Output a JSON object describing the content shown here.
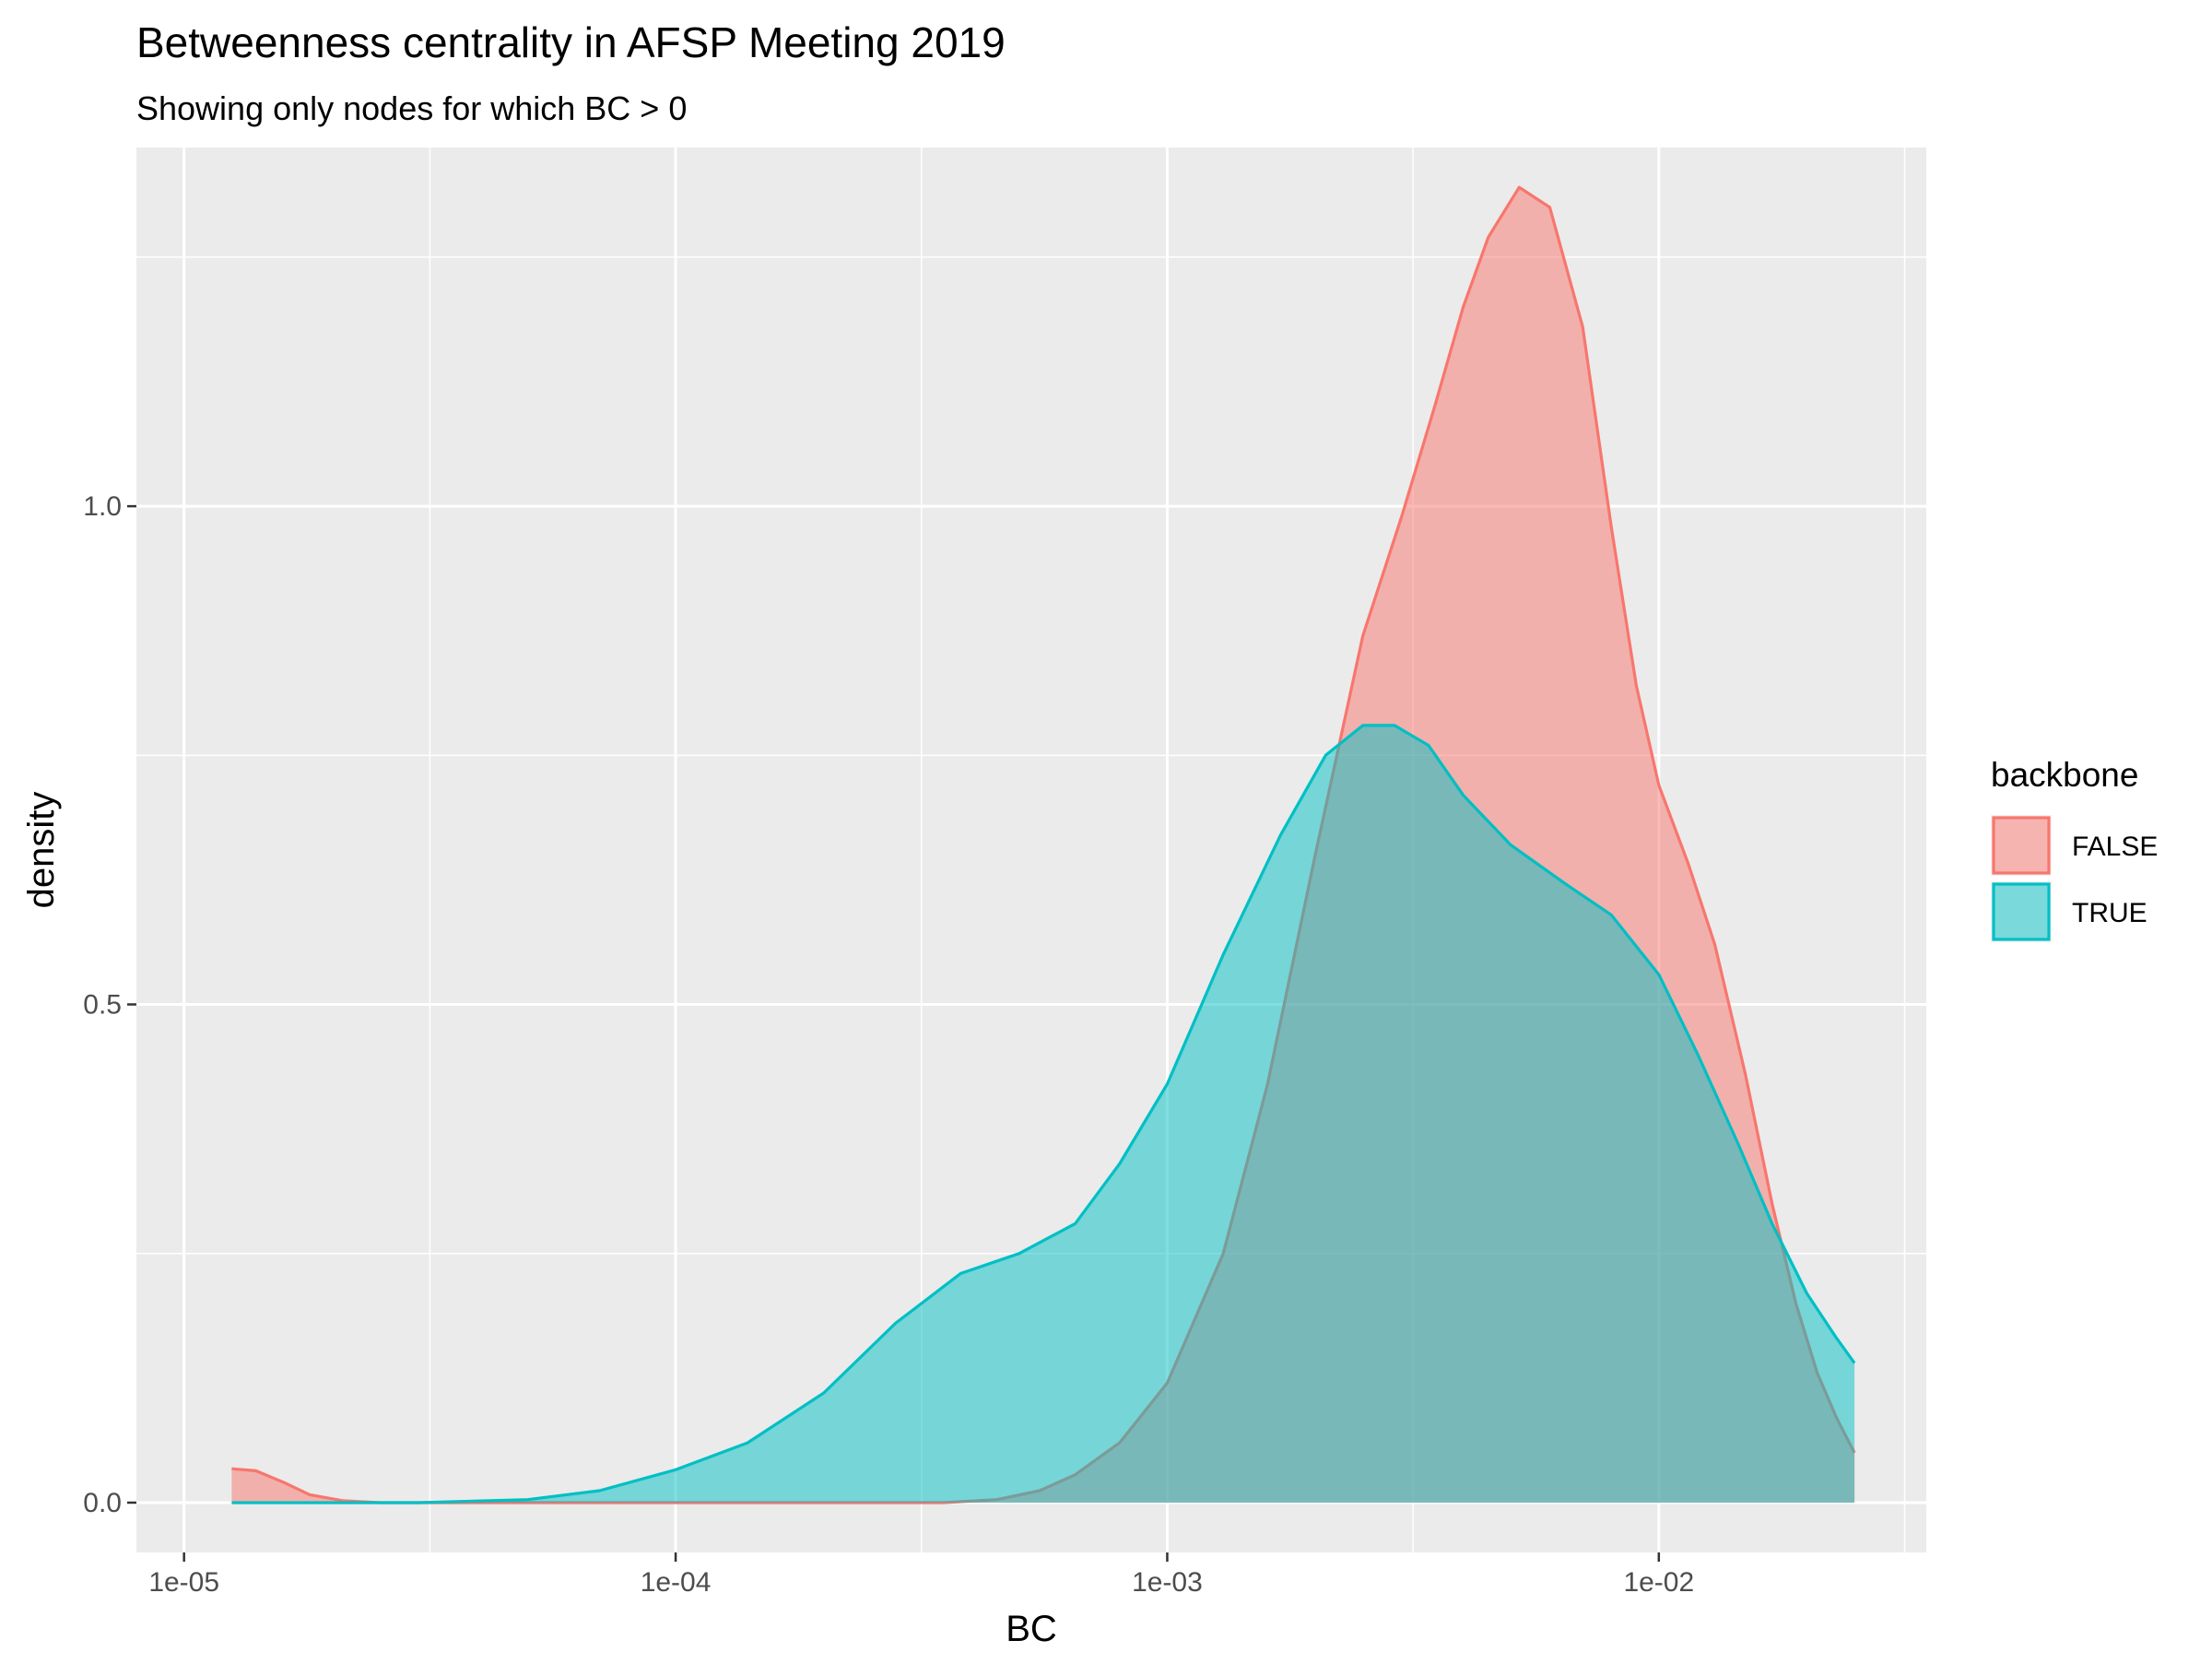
{
  "chart_data": {
    "type": "area",
    "title": "Betweenness centrality in AFSP Meeting 2019",
    "subtitle": "Showing only nodes for which BC > 0",
    "xlabel": "BC",
    "ylabel": "density",
    "x_scale": "log10",
    "xlim": [
      8e-06,
      0.035
    ],
    "ylim": [
      -0.05,
      1.36
    ],
    "x_ticks": [
      {
        "value": 1e-05,
        "label": "1e-05"
      },
      {
        "value": 0.0001,
        "label": "1e-04"
      },
      {
        "value": 0.001,
        "label": "1e-03"
      },
      {
        "value": 0.01,
        "label": "1e-02"
      }
    ],
    "y_ticks": [
      {
        "value": 0.0,
        "label": "0.0"
      },
      {
        "value": 0.5,
        "label": "0.5"
      },
      {
        "value": 1.0,
        "label": "1.0"
      }
    ],
    "grid": true,
    "legend": {
      "title": "backbone",
      "position": "right"
    },
    "series": [
      {
        "name": "FALSE",
        "color": "#F8766D",
        "points": [
          [
            1.25e-05,
            0.034
          ],
          [
            1.4e-05,
            0.032
          ],
          [
            1.6e-05,
            0.02
          ],
          [
            1.8e-05,
            0.008
          ],
          [
            2.1e-05,
            0.002
          ],
          [
            2.5e-05,
            0.0
          ],
          [
            5e-05,
            0.0
          ],
          [
            0.0001,
            0.0
          ],
          [
            0.0002,
            0.0
          ],
          [
            0.00035,
            0.0
          ],
          [
            0.00045,
            0.003
          ],
          [
            0.00055,
            0.012
          ],
          [
            0.00065,
            0.028
          ],
          [
            0.0008,
            0.06
          ],
          [
            0.001,
            0.12
          ],
          [
            0.0013,
            0.25
          ],
          [
            0.0016,
            0.42
          ],
          [
            0.002,
            0.65
          ],
          [
            0.0025,
            0.87
          ],
          [
            0.003,
            0.99
          ],
          [
            0.0035,
            1.1
          ],
          [
            0.004,
            1.2
          ],
          [
            0.0045,
            1.27
          ],
          [
            0.0052,
            1.32
          ],
          [
            0.006,
            1.3
          ],
          [
            0.007,
            1.18
          ],
          [
            0.008,
            0.98
          ],
          [
            0.009,
            0.82
          ],
          [
            0.01,
            0.72
          ],
          [
            0.0115,
            0.64
          ],
          [
            0.013,
            0.56
          ],
          [
            0.015,
            0.43
          ],
          [
            0.017,
            0.3
          ],
          [
            0.019,
            0.2
          ],
          [
            0.021,
            0.13
          ],
          [
            0.023,
            0.085
          ],
          [
            0.025,
            0.05
          ]
        ]
      },
      {
        "name": "TRUE",
        "color": "#00BFC4",
        "points": [
          [
            1.25e-05,
            0.0
          ],
          [
            3e-05,
            0.0
          ],
          [
            5e-05,
            0.003
          ],
          [
            7e-05,
            0.012
          ],
          [
            0.0001,
            0.033
          ],
          [
            0.00014,
            0.06
          ],
          [
            0.0002,
            0.11
          ],
          [
            0.00028,
            0.18
          ],
          [
            0.00038,
            0.23
          ],
          [
            0.0005,
            0.25
          ],
          [
            0.00065,
            0.28
          ],
          [
            0.0008,
            0.34
          ],
          [
            0.001,
            0.42
          ],
          [
            0.0013,
            0.55
          ],
          [
            0.0017,
            0.67
          ],
          [
            0.0021,
            0.75
          ],
          [
            0.0025,
            0.78
          ],
          [
            0.0029,
            0.78
          ],
          [
            0.0034,
            0.76
          ],
          [
            0.004,
            0.71
          ],
          [
            0.005,
            0.66
          ],
          [
            0.0065,
            0.62
          ],
          [
            0.008,
            0.59
          ],
          [
            0.01,
            0.53
          ],
          [
            0.012,
            0.45
          ],
          [
            0.0145,
            0.36
          ],
          [
            0.017,
            0.28
          ],
          [
            0.02,
            0.21
          ],
          [
            0.023,
            0.165
          ],
          [
            0.025,
            0.14
          ]
        ]
      }
    ]
  }
}
